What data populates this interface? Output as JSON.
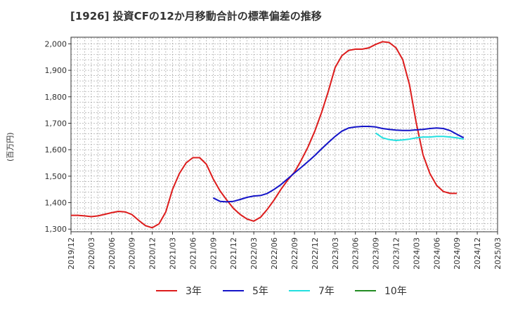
{
  "chart_data": {
    "type": "line",
    "title": "[1926]  投資CFの12か月移動合計の標準偏差の推移",
    "ylabel": "(百万円)",
    "ylim": [
      1290,
      2025
    ],
    "yticks": [
      1300,
      1400,
      1500,
      1600,
      1700,
      1800,
      1900,
      2000
    ],
    "ytick_labels": [
      "1,300",
      "1,400",
      "1,500",
      "1,600",
      "1,700",
      "1,800",
      "1,900",
      "2,000"
    ],
    "x_categories": [
      "2019/12",
      "2020/03",
      "2020/06",
      "2020/09",
      "2020/12",
      "2021/03",
      "2021/06",
      "2021/09",
      "2021/12",
      "2022/03",
      "2022/06",
      "2022/09",
      "2022/12",
      "2023/03",
      "2023/06",
      "2023/09",
      "2023/12",
      "2024/03",
      "2024/06",
      "2024/09",
      "2024/12",
      "2025/03"
    ],
    "x_start": "2019/12",
    "grid": true,
    "legend": "bottom",
    "series": [
      {
        "name": "3年",
        "color": "#dd1c1c",
        "start_index": 0,
        "values": [
          1352,
          1352,
          1350,
          1347,
          1350,
          1356,
          1362,
          1367,
          1365,
          1355,
          1333,
          1313,
          1305,
          1320,
          1365,
          1450,
          1510,
          1550,
          1570,
          1570,
          1545,
          1490,
          1445,
          1410,
          1378,
          1355,
          1338,
          1330,
          1345,
          1375,
          1410,
          1450,
          1485,
          1515,
          1560,
          1610,
          1670,
          1740,
          1820,
          1910,
          1955,
          1975,
          1980,
          1980,
          1985,
          1998,
          2008,
          2005,
          1985,
          1940,
          1845,
          1700,
          1580,
          1510,
          1465,
          1442,
          1435,
          1435
        ]
      },
      {
        "name": "5年",
        "color": "#1414c8",
        "start_index": 21,
        "values": [
          1418,
          1405,
          1403,
          1405,
          1412,
          1420,
          1425,
          1427,
          1435,
          1450,
          1468,
          1490,
          1512,
          1533,
          1555,
          1578,
          1603,
          1627,
          1650,
          1670,
          1682,
          1686,
          1688,
          1688,
          1686,
          1680,
          1677,
          1674,
          1673,
          1673,
          1675,
          1677,
          1680,
          1682,
          1680,
          1672,
          1658,
          1645
        ]
      },
      {
        "name": "7年",
        "color": "#22e0e0",
        "start_index": 45,
        "values": [
          1663,
          1645,
          1638,
          1635,
          1637,
          1640,
          1645,
          1648,
          1648,
          1650,
          1650,
          1648,
          1645,
          1640
        ]
      },
      {
        "name": "10年",
        "color": "#228b22",
        "start_index": 0,
        "values": []
      }
    ]
  }
}
